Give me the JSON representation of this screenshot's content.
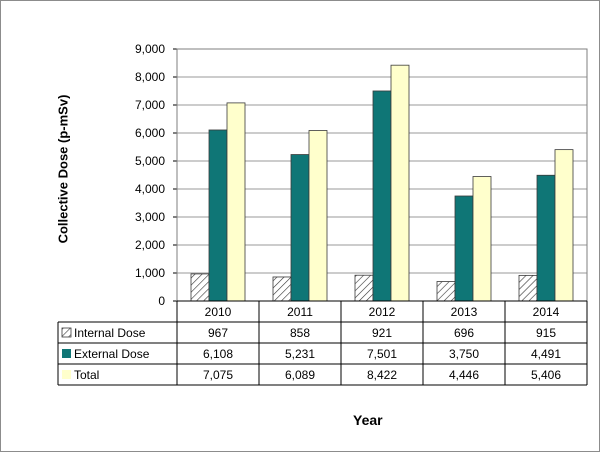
{
  "chart_data": {
    "type": "bar",
    "title": "",
    "xlabel": "Year",
    "ylabel": "Collective Dose (p-mSv)",
    "categories": [
      "2010",
      "2011",
      "2012",
      "2013",
      "2014"
    ],
    "ylim": [
      0,
      9000
    ],
    "yticks": [
      "0",
      "1,000",
      "2,000",
      "3,000",
      "4,000",
      "5,000",
      "6,000",
      "7,000",
      "8,000",
      "9,000"
    ],
    "grid": true,
    "legend": "data-table",
    "series": [
      {
        "name": "Internal Dose",
        "values": [
          967,
          858,
          921,
          696,
          915
        ],
        "labels": [
          "967",
          "858",
          "921",
          "696",
          "915"
        ],
        "color": "#ffffff",
        "pattern": "diagonal-hatch"
      },
      {
        "name": "External Dose",
        "values": [
          6108,
          5231,
          7501,
          3750,
          4491
        ],
        "labels": [
          "6,108",
          "5,231",
          "7,501",
          "3,750",
          "4,491"
        ],
        "color": "#0f7676",
        "pattern": "solid"
      },
      {
        "name": "Total",
        "values": [
          7075,
          6089,
          8422,
          4446,
          5406
        ],
        "labels": [
          "7,075",
          "6,089",
          "8,422",
          "4,446",
          "5,406"
        ],
        "color": "#ffffcc",
        "pattern": "solid"
      }
    ]
  }
}
